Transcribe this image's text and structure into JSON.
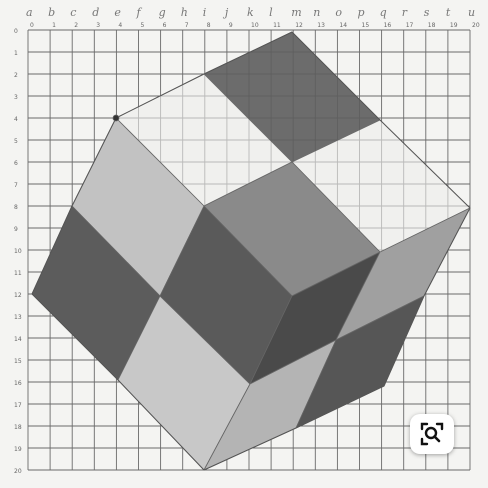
{
  "image": {
    "column_letters": [
      "a",
      "b",
      "c",
      "d",
      "e",
      "f",
      "g",
      "h",
      "i",
      "j",
      "k",
      "l",
      "m",
      "n",
      "o",
      "p",
      "q",
      "r",
      "s",
      "t",
      "u"
    ],
    "column_numbers": [
      "0",
      "1",
      "2",
      "3",
      "4",
      "5",
      "6",
      "7",
      "8",
      "9",
      "10",
      "11",
      "12",
      "13",
      "14",
      "15",
      "16",
      "17",
      "18",
      "19",
      "20"
    ],
    "row_numbers": [
      "0",
      "1",
      "2",
      "3",
      "4",
      "5",
      "6",
      "7",
      "8",
      "9",
      "10",
      "11",
      "12",
      "13",
      "14",
      "15",
      "16",
      "17",
      "18",
      "19",
      "20"
    ],
    "colors": {
      "paper": "#f4f4f2",
      "grid": "#6a6a6a",
      "light_face": "#c2c2c2",
      "mid_face": "#8e8e8e",
      "dark_face": "#5e5e5e",
      "darkest_face": "#4a4a4a"
    }
  },
  "lens_button": {
    "icon": "visual-search-icon"
  }
}
